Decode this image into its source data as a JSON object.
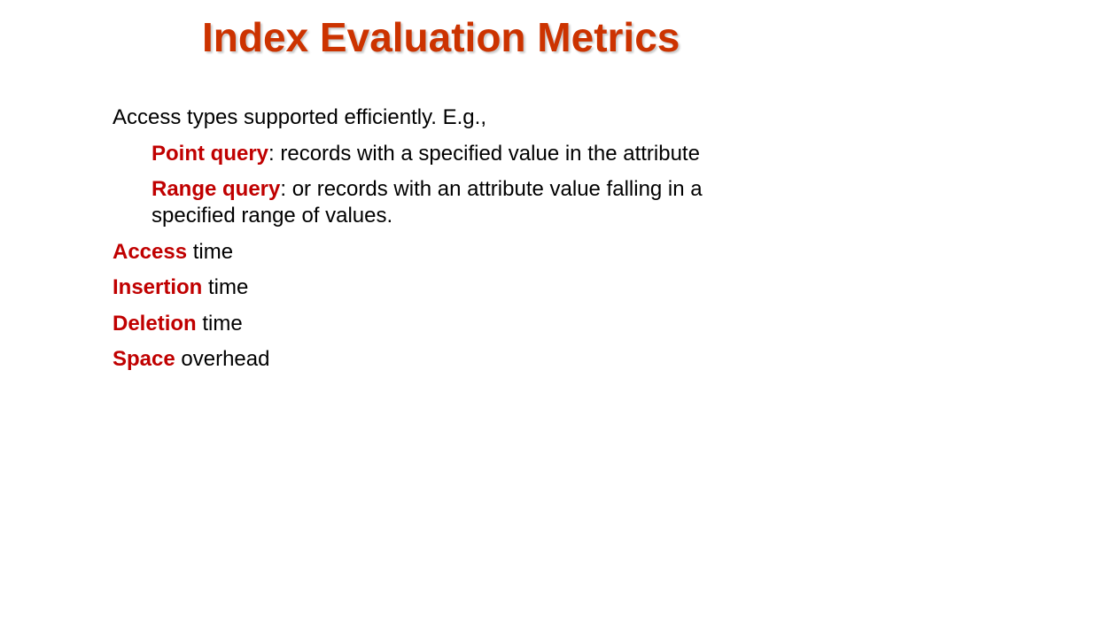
{
  "slide": {
    "title": "Index Evaluation Metrics",
    "accent_color": "#C00000",
    "title_color": "#CC3300",
    "items": [
      {
        "keyword": "",
        "text": "Access types supported efficiently.  E.g.,"
      },
      {
        "keyword": "Point query",
        "text": ": records with a specified value in the attribute"
      },
      {
        "keyword": "Range query",
        "text": ": or records with an attribute value falling in a specified range of values."
      },
      {
        "keyword": "Access",
        "text": " time"
      },
      {
        "keyword": "Insertion",
        "text": " time"
      },
      {
        "keyword": "Deletion",
        "text": " time"
      },
      {
        "keyword": "Space",
        "text": " overhead"
      }
    ]
  }
}
